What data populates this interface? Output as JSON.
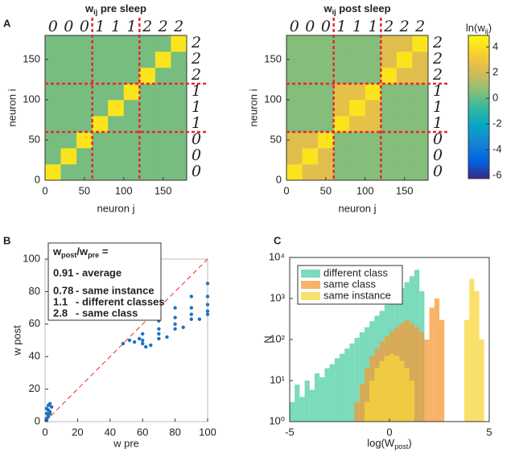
{
  "chart_data": [
    {
      "type": "heatmap",
      "panel_label": "A",
      "title_symbol": "w",
      "title_subscript": "ij",
      "title": "pre sleep",
      "x_label": "neuron j",
      "y_label": "neuron i",
      "xlim": [
        0,
        180
      ],
      "ylim": [
        0,
        180
      ],
      "xticks": [
        0,
        50,
        100,
        150
      ],
      "yticks": [
        0,
        50,
        100,
        150
      ],
      "bins": [
        0,
        20,
        40,
        60,
        80,
        100,
        120,
        140,
        160,
        180
      ],
      "values": [
        [
          4.2,
          0.3,
          0.3,
          0.3,
          0.3,
          0.3,
          0.3,
          0.3,
          0.3
        ],
        [
          0.3,
          4.2,
          0.3,
          0.3,
          0.3,
          0.3,
          0.3,
          0.3,
          0.3
        ],
        [
          0.3,
          0.3,
          4.2,
          0.3,
          0.3,
          0.3,
          0.3,
          0.3,
          0.3
        ],
        [
          0.3,
          0.3,
          0.3,
          4.2,
          0.3,
          0.3,
          0.3,
          0.3,
          0.3
        ],
        [
          0.3,
          0.3,
          0.3,
          0.3,
          4.2,
          0.3,
          0.3,
          0.3,
          0.3
        ],
        [
          0.3,
          0.3,
          0.3,
          0.3,
          0.3,
          4.2,
          0.3,
          0.3,
          0.3
        ],
        [
          0.3,
          0.3,
          0.3,
          0.3,
          0.3,
          0.3,
          4.2,
          0.3,
          0.3
        ],
        [
          0.3,
          0.3,
          0.3,
          0.3,
          0.3,
          0.3,
          0.3,
          4.2,
          0.3
        ],
        [
          0.3,
          0.3,
          0.3,
          0.3,
          0.3,
          0.3,
          0.3,
          0.3,
          4.2
        ]
      ],
      "dividers": [
        60,
        120
      ],
      "divider_color": "#e8282b",
      "digits": [
        "0",
        "0",
        "0",
        "1",
        "1",
        "1",
        "2",
        "2",
        "2"
      ]
    },
    {
      "type": "heatmap",
      "title_symbol": "w",
      "title_subscript": "ij",
      "title": "post sleep",
      "x_label": "neuron j",
      "y_label": "neuron i",
      "xlim": [
        0,
        180
      ],
      "ylim": [
        0,
        180
      ],
      "xticks": [
        0,
        50,
        100,
        150
      ],
      "yticks": [
        0,
        50,
        100,
        150
      ],
      "bins": [
        0,
        20,
        40,
        60,
        80,
        100,
        120,
        140,
        160,
        180
      ],
      "values": [
        [
          4.2,
          2.4,
          2.4,
          0.5,
          0.5,
          0.5,
          0.5,
          0.5,
          0.5
        ],
        [
          2.4,
          4.2,
          2.4,
          0.5,
          0.5,
          0.5,
          0.5,
          0.5,
          0.5
        ],
        [
          2.4,
          2.4,
          4.2,
          0.5,
          0.5,
          0.5,
          0.5,
          0.5,
          0.5
        ],
        [
          0.5,
          0.5,
          0.5,
          4.2,
          2.6,
          2.6,
          0.5,
          0.5,
          0.5
        ],
        [
          0.5,
          0.5,
          0.5,
          2.6,
          4.2,
          2.6,
          0.5,
          0.5,
          0.5
        ],
        [
          0.5,
          0.5,
          0.5,
          2.6,
          2.6,
          4.2,
          0.5,
          0.5,
          0.5
        ],
        [
          0.5,
          0.5,
          0.5,
          0.5,
          0.5,
          0.5,
          4.2,
          2.4,
          2.4
        ],
        [
          0.5,
          0.5,
          0.5,
          0.5,
          0.5,
          0.5,
          2.4,
          4.2,
          2.4
        ],
        [
          0.5,
          0.5,
          0.5,
          0.5,
          0.5,
          0.5,
          2.4,
          2.4,
          4.2
        ]
      ],
      "dividers": [
        60,
        120
      ],
      "divider_color": "#e8282b",
      "digits": [
        "0",
        "0",
        "0",
        "1",
        "1",
        "1",
        "2",
        "2",
        "2"
      ],
      "colorbar": {
        "label_start": "ln(w",
        "label_subscript": "ij",
        "label_end": ")",
        "clim": [
          -6.25,
          4.9
        ],
        "ticks": [
          -6,
          -4,
          -2,
          0,
          2,
          4
        ]
      }
    },
    {
      "type": "scatter",
      "panel_label": "B",
      "x_label": "w pre",
      "y_label": "w post",
      "xlim": [
        0,
        100
      ],
      "ylim": [
        0,
        100
      ],
      "xticks": [
        0,
        20,
        40,
        60,
        80,
        100
      ],
      "yticks": [
        0,
        20,
        40,
        60,
        80,
        100
      ],
      "color": "#1f72c0",
      "diagonal_color": "#e8282b",
      "x": [
        1,
        2,
        3,
        1,
        2,
        3,
        1,
        2,
        3,
        4,
        1,
        2,
        48,
        52,
        55,
        58,
        60,
        70,
        80,
        90,
        100,
        60,
        70,
        80,
        90,
        100,
        60,
        70,
        80,
        90,
        100,
        62,
        70,
        80,
        90,
        100,
        65,
        75,
        85,
        95,
        100
      ],
      "values": [
        2,
        4,
        6,
        8,
        10,
        11,
        1,
        3,
        5,
        9,
        5,
        7,
        48,
        50,
        49,
        51,
        54,
        62,
        70,
        77,
        85,
        50,
        57,
        64,
        70,
        77,
        48,
        54,
        60,
        66,
        72,
        46,
        51,
        57,
        63,
        68,
        47,
        52,
        58,
        63,
        66
      ],
      "annotation_header": [
        {
          "text": "w",
          "sub": false
        },
        {
          "text": "post",
          "sub": true
        },
        {
          "text": "/w",
          "sub": false
        },
        {
          "text": "pre",
          "sub": true
        },
        {
          "text": " =",
          "sub": false
        }
      ],
      "annotations": [
        {
          "value": 0.91,
          "label": "- average"
        },
        {
          "value": 0.78,
          "label": "- same instance"
        },
        {
          "value": 1.1,
          "label": "- different classes"
        },
        {
          "value": 2.8,
          "label": "- same class"
        }
      ]
    },
    {
      "type": "histogram",
      "panel_label": "C",
      "y_label": "N",
      "x_label_start": "log(W",
      "x_label_subscript": "post",
      "x_label_end": ")",
      "xlim": [
        -5,
        5
      ],
      "xticks": [
        -5,
        0,
        5
      ],
      "log_y": true,
      "ylim": [
        1,
        10000
      ],
      "yticks": [
        {
          "value": 1,
          "label": "10⁰"
        },
        {
          "value": 10,
          "label": "10¹"
        },
        {
          "value": 100,
          "label": "10²"
        },
        {
          "value": 1000,
          "label": "10³"
        },
        {
          "value": 10000,
          "label": "10⁴"
        }
      ],
      "legend": "upper left",
      "bar_alpha": 0.75,
      "bins": [
        -5,
        -4.75,
        -4.5,
        -4.25,
        -4,
        -3.75,
        -3.5,
        -3.25,
        -3,
        -2.75,
        -2.5,
        -2.25,
        -2,
        -1.75,
        -1.5,
        -1.25,
        -1,
        -0.75,
        -0.5,
        -0.25,
        0,
        0.25,
        0.5,
        0.75,
        1,
        1.25,
        1.5,
        1.75,
        2,
        2.25,
        2.5,
        2.75,
        3,
        3.25,
        3.5,
        3.75,
        4,
        4.25,
        4.5,
        4.75,
        5
      ],
      "series": [
        {
          "name": "different class",
          "color": "#4fcfa6",
          "values": [
            3,
            8,
            4,
            10,
            6,
            15,
            12,
            20,
            25,
            35,
            45,
            60,
            80,
            110,
            150,
            200,
            280,
            380,
            500,
            700,
            900,
            1300,
            1800,
            2500,
            3500,
            5000,
            1500,
            null,
            null,
            null,
            null,
            null,
            null,
            null,
            null,
            null,
            null,
            null,
            null,
            null
          ]
        },
        {
          "name": "same class",
          "color": "#f59a35",
          "values": [
            null,
            null,
            null,
            null,
            null,
            null,
            null,
            null,
            null,
            null,
            null,
            null,
            null,
            3,
            8,
            20,
            40,
            60,
            90,
            120,
            160,
            200,
            250,
            300,
            250,
            200,
            150,
            100,
            600,
            1000,
            300,
            null,
            null,
            null,
            null,
            null,
            null,
            null,
            null,
            null
          ]
        },
        {
          "name": "same instance",
          "color": "#f7d53a",
          "values": [
            null,
            null,
            null,
            null,
            null,
            null,
            null,
            null,
            null,
            null,
            null,
            null,
            null,
            null,
            null,
            3,
            10,
            20,
            30,
            40,
            45,
            40,
            30,
            20,
            10,
            null,
            null,
            null,
            null,
            null,
            null,
            null,
            null,
            null,
            null,
            300,
            3000,
            1500,
            100,
            null
          ]
        }
      ]
    }
  ]
}
